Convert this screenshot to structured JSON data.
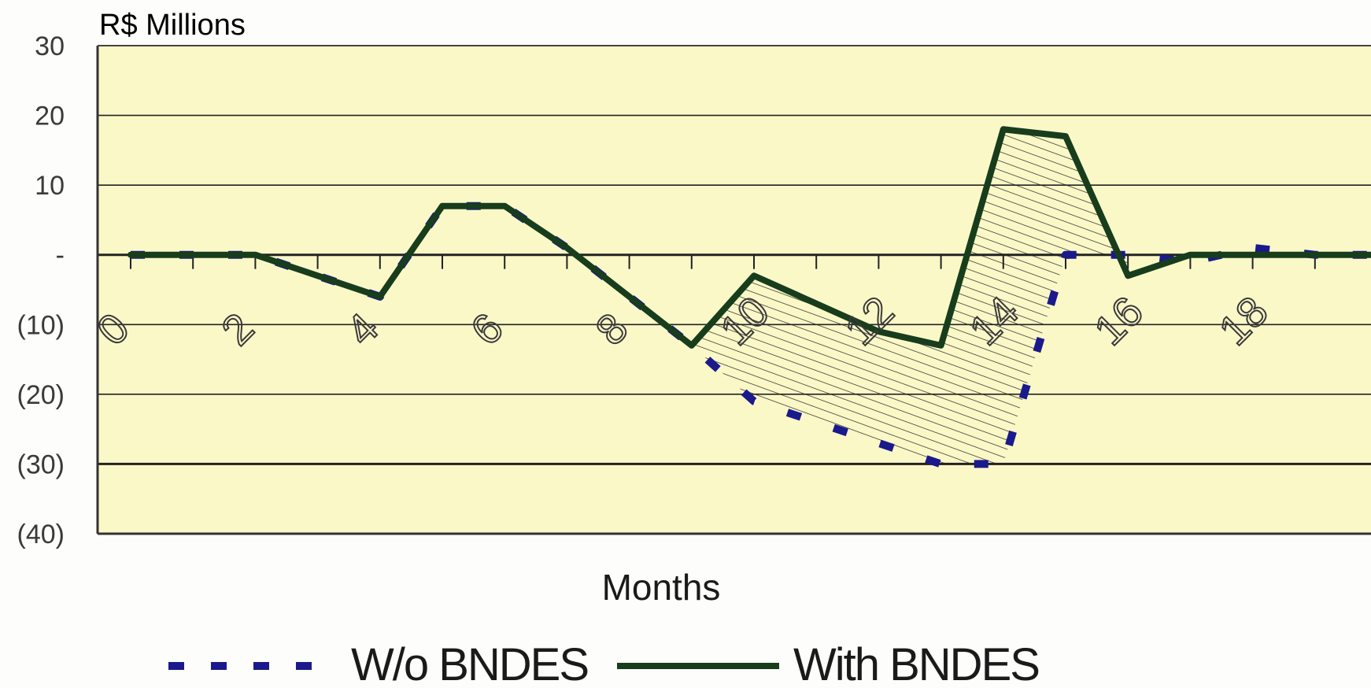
{
  "chart_data": {
    "type": "line",
    "title": "",
    "ylabel": "R$ Millions",
    "xlabel": "Months",
    "x": [
      0,
      1,
      2,
      3,
      4,
      5,
      6,
      7,
      8,
      9,
      10,
      11,
      12,
      13,
      14,
      15,
      16,
      17,
      18,
      19,
      20
    ],
    "x_tick_labels": [
      "0",
      "2",
      "4",
      "6",
      "8",
      "10",
      "12",
      "14",
      "16",
      "18"
    ],
    "x_tick_values": [
      0,
      2,
      4,
      6,
      8,
      10,
      12,
      14,
      16,
      18
    ],
    "y_tick_labels": [
      "30",
      "20",
      "10",
      "-",
      "(10)",
      "(20)",
      "(30)",
      "(40)"
    ],
    "y_tick_values": [
      30,
      20,
      10,
      0,
      -10,
      -20,
      -30,
      -40
    ],
    "ylim": [
      -40,
      30
    ],
    "xlim": [
      -0.5,
      19.8
    ],
    "grid": true,
    "legend_position": "bottom",
    "series": [
      {
        "name": "W/o BNDES",
        "style": "dashed",
        "color": "#1a1a8c",
        "x": [
          0,
          1,
          2,
          3,
          4,
          5,
          6,
          7,
          8,
          9,
          10,
          11,
          12,
          13,
          14,
          15,
          16,
          17,
          18,
          19,
          20
        ],
        "values": [
          0,
          0,
          0,
          -3,
          -6,
          7,
          7,
          1,
          -6,
          -13,
          -21,
          -24,
          -27,
          -30,
          -30,
          0,
          0,
          -1,
          1,
          0,
          0
        ]
      },
      {
        "name": "With BNDES",
        "style": "solid",
        "color": "#173d1c",
        "x": [
          0,
          1,
          2,
          3,
          4,
          5,
          6,
          7,
          8,
          9,
          10,
          11,
          12,
          13,
          14,
          15,
          16,
          17,
          18,
          19,
          20
        ],
        "values": [
          0,
          0,
          0,
          -3,
          -6,
          7,
          7,
          1,
          -6,
          -13,
          -3,
          -7,
          -11,
          -13,
          18,
          17,
          -3,
          0,
          0,
          0,
          0
        ]
      }
    ],
    "colors": {
      "plot_background": "#fbf8c8",
      "gridline": "#222222",
      "hatch": "#222222"
    }
  }
}
